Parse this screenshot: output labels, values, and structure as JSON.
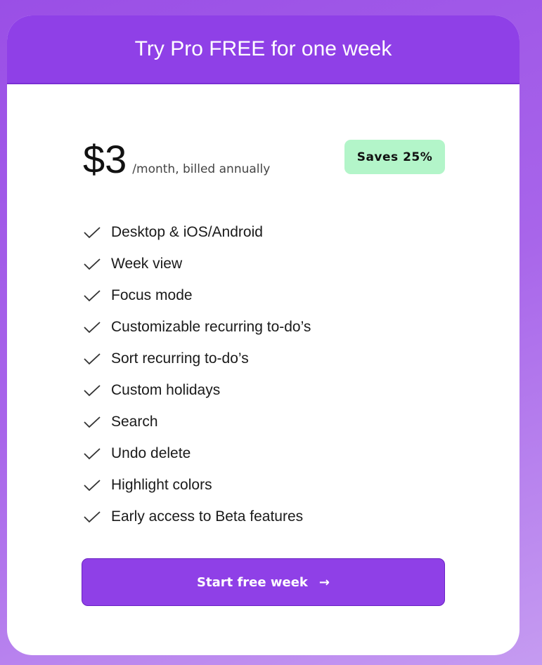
{
  "header": {
    "title": "Try Pro FREE for one week"
  },
  "pricing": {
    "amount": "$3",
    "period": "/month, billed annually",
    "badge": "Saves 25%"
  },
  "features": [
    "Desktop & iOS/Android",
    "Week view",
    "Focus mode",
    "Customizable recurring to-do’s",
    "Sort recurring to-do’s",
    "Custom holidays",
    "Search",
    "Undo delete",
    "Highlight colors",
    "Early access to Beta features"
  ],
  "cta": {
    "label": "Start free week",
    "icon": "arrow-right-icon"
  },
  "colors": {
    "accent": "#8f40e7",
    "badge": "#b3f5c9"
  }
}
